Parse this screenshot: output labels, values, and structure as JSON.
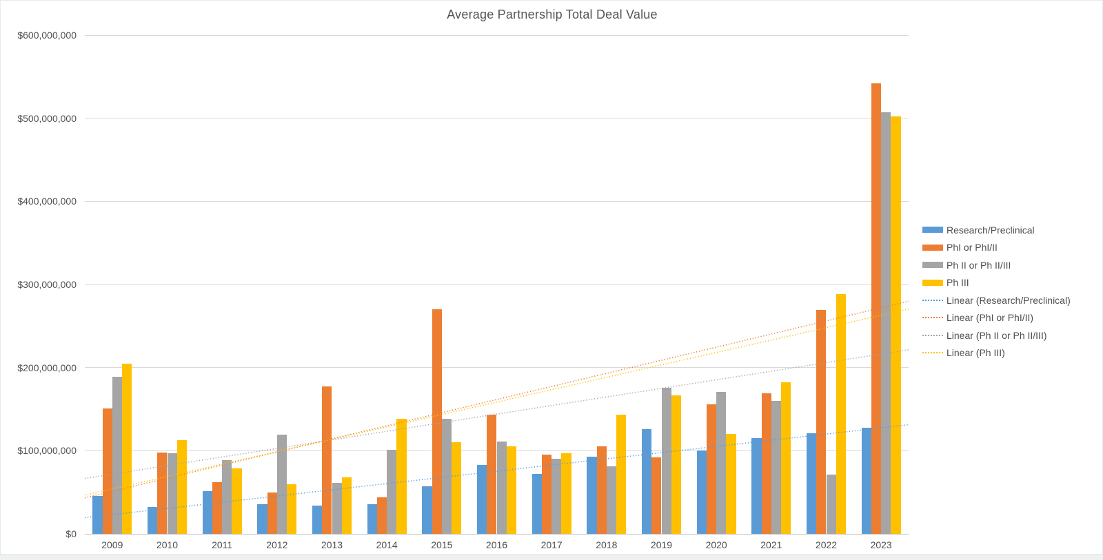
{
  "title": "Average Partnership Total Deal Value",
  "chart_data": {
    "type": "bar",
    "title": "Average Partnership Total Deal Value",
    "categories": [
      "2009",
      "2010",
      "2011",
      "2012",
      "2013",
      "2014",
      "2015",
      "2016",
      "2017",
      "2018",
      "2019",
      "2020",
      "2021",
      "2022",
      "2023"
    ],
    "series": [
      {
        "name": "Research/Preclinical",
        "color": "#5B9BD5",
        "values": [
          46000000,
          32000000,
          51000000,
          36000000,
          34000000,
          36000000,
          57000000,
          83000000,
          72000000,
          93000000,
          126000000,
          100000000,
          115000000,
          121000000,
          128000000
        ]
      },
      {
        "name": "PhI or PhI/II",
        "color": "#ED7D31",
        "values": [
          151000000,
          98000000,
          62000000,
          50000000,
          177000000,
          44000000,
          270000000,
          143000000,
          95000000,
          105000000,
          92000000,
          156000000,
          169000000,
          269000000,
          542000000
        ]
      },
      {
        "name": "Ph II or Ph II/III",
        "color": "#A5A5A5",
        "values": [
          189000000,
          97000000,
          89000000,
          119000000,
          61000000,
          101000000,
          138000000,
          111000000,
          90000000,
          81000000,
          176000000,
          171000000,
          160000000,
          71000000,
          507000000
        ]
      },
      {
        "name": "Ph III",
        "color": "#FFC000",
        "values": [
          205000000,
          113000000,
          79000000,
          60000000,
          68000000,
          138000000,
          110000000,
          105000000,
          97000000,
          143000000,
          167000000,
          120000000,
          182000000,
          288000000,
          502000000
        ]
      }
    ],
    "trendlines": [
      {
        "name": "Linear (Research/Preclinical)",
        "series_index": 0,
        "color": "#5B9BD5"
      },
      {
        "name": "Linear (PhI or PhI/II)",
        "series_index": 1,
        "color": "#ED7D31"
      },
      {
        "name": "Linear (Ph II or Ph II/III)",
        "series_index": 2,
        "color": "#A5A5A5"
      },
      {
        "name": "Linear (Ph III)",
        "series_index": 3,
        "color": "#FFC000"
      }
    ],
    "y_axis": {
      "min": 0,
      "max": 600000000,
      "tick_interval": 100000000,
      "ticks": [
        {
          "value": 0,
          "label": "$0"
        },
        {
          "value": 100000000,
          "label": "$100,000,000"
        },
        {
          "value": 200000000,
          "label": "$200,000,000"
        },
        {
          "value": 300000000,
          "label": "$300,000,000"
        },
        {
          "value": 400000000,
          "label": "$400,000,000"
        },
        {
          "value": 500000000,
          "label": "$500,000,000"
        },
        {
          "value": 600000000,
          "label": "$600,000,000"
        }
      ]
    },
    "grid": true,
    "legend_position": "right",
    "colors": {
      "gridline": "#d9d9d9",
      "zero_axis": "#bfbfbf",
      "text": "#4e4e4e"
    }
  }
}
